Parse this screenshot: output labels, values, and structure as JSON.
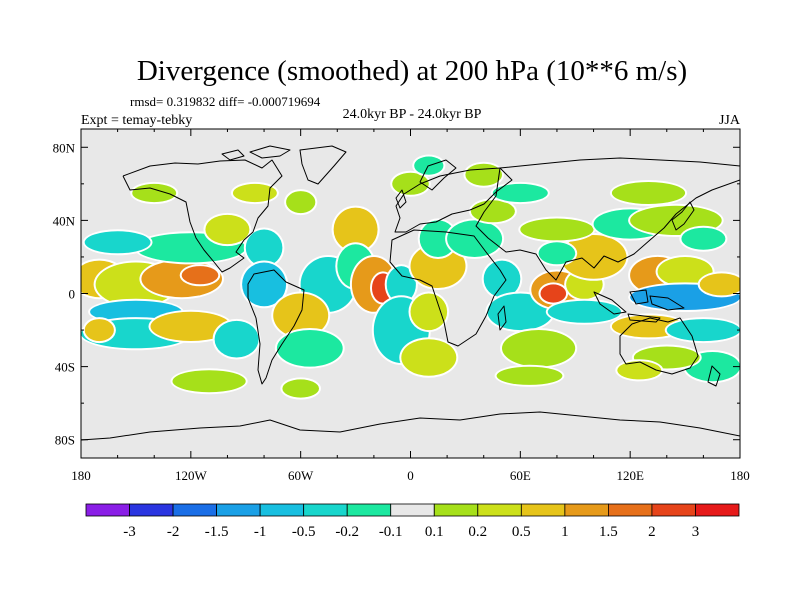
{
  "chart_data": {
    "type": "heatmap",
    "title": "Divergence (smoothed) at 200 hPa (10**6 m/s)",
    "stats": "rmsd= 0.319832 diff= -0.000719694",
    "subtitle_left": "Expt = temay-tebky",
    "subtitle_center": "24.0kyr BP - 24.0kyr BP",
    "subtitle_right": "JJA",
    "x_range": [
      -180,
      180
    ],
    "y_range": [
      -90,
      90
    ],
    "x_ticks": [
      {
        "value": -180,
        "label": "180"
      },
      {
        "value": -120,
        "label": "120W"
      },
      {
        "value": -60,
        "label": "60W"
      },
      {
        "value": 0,
        "label": "0"
      },
      {
        "value": 60,
        "label": "60E"
      },
      {
        "value": 120,
        "label": "120E"
      },
      {
        "value": 180,
        "label": "180"
      }
    ],
    "y_ticks": [
      {
        "value": 80,
        "label": "80N"
      },
      {
        "value": 40,
        "label": "40N"
      },
      {
        "value": 0,
        "label": "0"
      },
      {
        "value": -40,
        "label": "40S"
      },
      {
        "value": -80,
        "label": "80S"
      }
    ],
    "colorbar": {
      "colors": [
        "#8a1ee6",
        "#2a35e0",
        "#1a6ee6",
        "#1aa0e6",
        "#18bfe0",
        "#18d6cc",
        "#1ce8a0",
        "#e8e8e8",
        "#a6e01a",
        "#cce01a",
        "#e6c41a",
        "#e69a1a",
        "#e6701a",
        "#e6441a",
        "#e61a1a"
      ],
      "labels": [
        "-3",
        "-2",
        "-1.5",
        "-1",
        "-0.5",
        "-0.2",
        "-0.1",
        "0.1",
        "0.2",
        "0.5",
        "1",
        "1.5",
        "2",
        "3"
      ]
    },
    "regions": [
      {
        "lon": -170,
        "lat": 8,
        "rx": 14,
        "ry": 10,
        "level": 3
      },
      {
        "lon": -150,
        "lat": 5,
        "rx": 22,
        "ry": 12,
        "level": 2
      },
      {
        "lon": -125,
        "lat": 8,
        "rx": 22,
        "ry": 10,
        "level": 4
      },
      {
        "lon": -115,
        "lat": 10,
        "rx": 10,
        "ry": 5,
        "level": 5
      },
      {
        "lon": -150,
        "lat": -10,
        "rx": 25,
        "ry": 6,
        "level": -3
      },
      {
        "lon": -150,
        "lat": -22,
        "rx": 30,
        "ry": 8,
        "level": -2
      },
      {
        "lon": -170,
        "lat": -20,
        "rx": 8,
        "ry": 6,
        "level": 3
      },
      {
        "lon": -120,
        "lat": -18,
        "rx": 22,
        "ry": 8,
        "level": 3
      },
      {
        "lon": -120,
        "lat": 25,
        "rx": 30,
        "ry": 8,
        "level": -1
      },
      {
        "lon": -160,
        "lat": 28,
        "rx": 18,
        "ry": 6,
        "level": -2
      },
      {
        "lon": -100,
        "lat": 35,
        "rx": 12,
        "ry": 8,
        "level": 2
      },
      {
        "lon": -80,
        "lat": 25,
        "rx": 10,
        "ry": 10,
        "level": -2
      },
      {
        "lon": -85,
        "lat": 55,
        "rx": 12,
        "ry": 5,
        "level": 2
      },
      {
        "lon": -60,
        "lat": 50,
        "rx": 8,
        "ry": 6,
        "level": 1
      },
      {
        "lon": -80,
        "lat": 5,
        "rx": 12,
        "ry": 12,
        "level": -3
      },
      {
        "lon": -45,
        "lat": 5,
        "rx": 15,
        "ry": 15,
        "level": -2
      },
      {
        "lon": -60,
        "lat": -12,
        "rx": 15,
        "ry": 12,
        "level": 3
      },
      {
        "lon": -55,
        "lat": -30,
        "rx": 18,
        "ry": 10,
        "level": -1
      },
      {
        "lon": -95,
        "lat": -25,
        "rx": 12,
        "ry": 10,
        "level": -2
      },
      {
        "lon": -110,
        "lat": -48,
        "rx": 20,
        "ry": 6,
        "level": 1
      },
      {
        "lon": -60,
        "lat": -52,
        "rx": 10,
        "ry": 5,
        "level": 1
      },
      {
        "lon": -30,
        "lat": 35,
        "rx": 12,
        "ry": 12,
        "level": 3
      },
      {
        "lon": -30,
        "lat": 15,
        "rx": 10,
        "ry": 12,
        "level": -1
      },
      {
        "lon": -20,
        "lat": 5,
        "rx": 12,
        "ry": 15,
        "level": 4
      },
      {
        "lon": -15,
        "lat": 3,
        "rx": 6,
        "ry": 8,
        "level": 6
      },
      {
        "lon": -5,
        "lat": 5,
        "rx": 8,
        "ry": 10,
        "level": -2
      },
      {
        "lon": -5,
        "lat": -20,
        "rx": 15,
        "ry": 18,
        "level": -2
      },
      {
        "lon": 15,
        "lat": 15,
        "rx": 15,
        "ry": 12,
        "level": 3
      },
      {
        "lon": 15,
        "lat": 30,
        "rx": 10,
        "ry": 10,
        "level": -1
      },
      {
        "lon": 10,
        "lat": -10,
        "rx": 10,
        "ry": 10,
        "level": 2
      },
      {
        "lon": 10,
        "lat": -35,
        "rx": 15,
        "ry": 10,
        "level": 2
      },
      {
        "lon": 35,
        "lat": 30,
        "rx": 15,
        "ry": 10,
        "level": -1
      },
      {
        "lon": 45,
        "lat": 45,
        "rx": 12,
        "ry": 6,
        "level": 1
      },
      {
        "lon": 50,
        "lat": 8,
        "rx": 10,
        "ry": 10,
        "level": -2
      },
      {
        "lon": 60,
        "lat": -10,
        "rx": 18,
        "ry": 10,
        "level": -2
      },
      {
        "lon": 70,
        "lat": -30,
        "rx": 20,
        "ry": 10,
        "level": 1
      },
      {
        "lon": 65,
        "lat": -45,
        "rx": 18,
        "ry": 5,
        "level": 1
      },
      {
        "lon": 0,
        "lat": 60,
        "rx": 10,
        "ry": 6,
        "level": 1
      },
      {
        "lon": 10,
        "lat": 70,
        "rx": 8,
        "ry": 5,
        "level": -1
      },
      {
        "lon": 40,
        "lat": 65,
        "rx": 10,
        "ry": 6,
        "level": 1
      },
      {
        "lon": 80,
        "lat": 2,
        "rx": 14,
        "ry": 10,
        "level": 4
      },
      {
        "lon": 78,
        "lat": 0,
        "rx": 7,
        "ry": 5,
        "level": 6
      },
      {
        "lon": 95,
        "lat": 5,
        "rx": 10,
        "ry": 8,
        "level": 2
      },
      {
        "lon": 95,
        "lat": -10,
        "rx": 20,
        "ry": 6,
        "level": -2
      },
      {
        "lon": 100,
        "lat": 20,
        "rx": 18,
        "ry": 12,
        "level": 3
      },
      {
        "lon": 80,
        "lat": 35,
        "rx": 20,
        "ry": 6,
        "level": 1
      },
      {
        "lon": 80,
        "lat": 22,
        "rx": 10,
        "ry": 6,
        "level": -1
      },
      {
        "lon": 120,
        "lat": 38,
        "rx": 20,
        "ry": 8,
        "level": -1
      },
      {
        "lon": 145,
        "lat": 40,
        "rx": 25,
        "ry": 8,
        "level": 1
      },
      {
        "lon": 130,
        "lat": 55,
        "rx": 20,
        "ry": 6,
        "level": 1
      },
      {
        "lon": 135,
        "lat": 10,
        "rx": 15,
        "ry": 10,
        "level": 4
      },
      {
        "lon": 150,
        "lat": 12,
        "rx": 15,
        "ry": 8,
        "level": 2
      },
      {
        "lon": 150,
        "lat": -2,
        "rx": 30,
        "ry": 7,
        "level": -4
      },
      {
        "lon": 130,
        "lat": -18,
        "rx": 20,
        "ry": 6,
        "level": 3
      },
      {
        "lon": 160,
        "lat": -20,
        "rx": 20,
        "ry": 6,
        "level": -2
      },
      {
        "lon": 165,
        "lat": -40,
        "rx": 15,
        "ry": 8,
        "level": -1
      },
      {
        "lon": 140,
        "lat": -35,
        "rx": 18,
        "ry": 6,
        "level": 1
      },
      {
        "lon": 170,
        "lat": 5,
        "rx": 12,
        "ry": 6,
        "level": 3
      },
      {
        "lon": 125,
        "lat": -42,
        "rx": 12,
        "ry": 5,
        "level": 2
      },
      {
        "lon": 160,
        "lat": 30,
        "rx": 12,
        "ry": 6,
        "level": -1
      },
      {
        "lon": 60,
        "lat": 55,
        "rx": 15,
        "ry": 5,
        "level": -1
      },
      {
        "lon": -140,
        "lat": 55,
        "rx": 12,
        "ry": 5,
        "level": 1
      }
    ]
  }
}
